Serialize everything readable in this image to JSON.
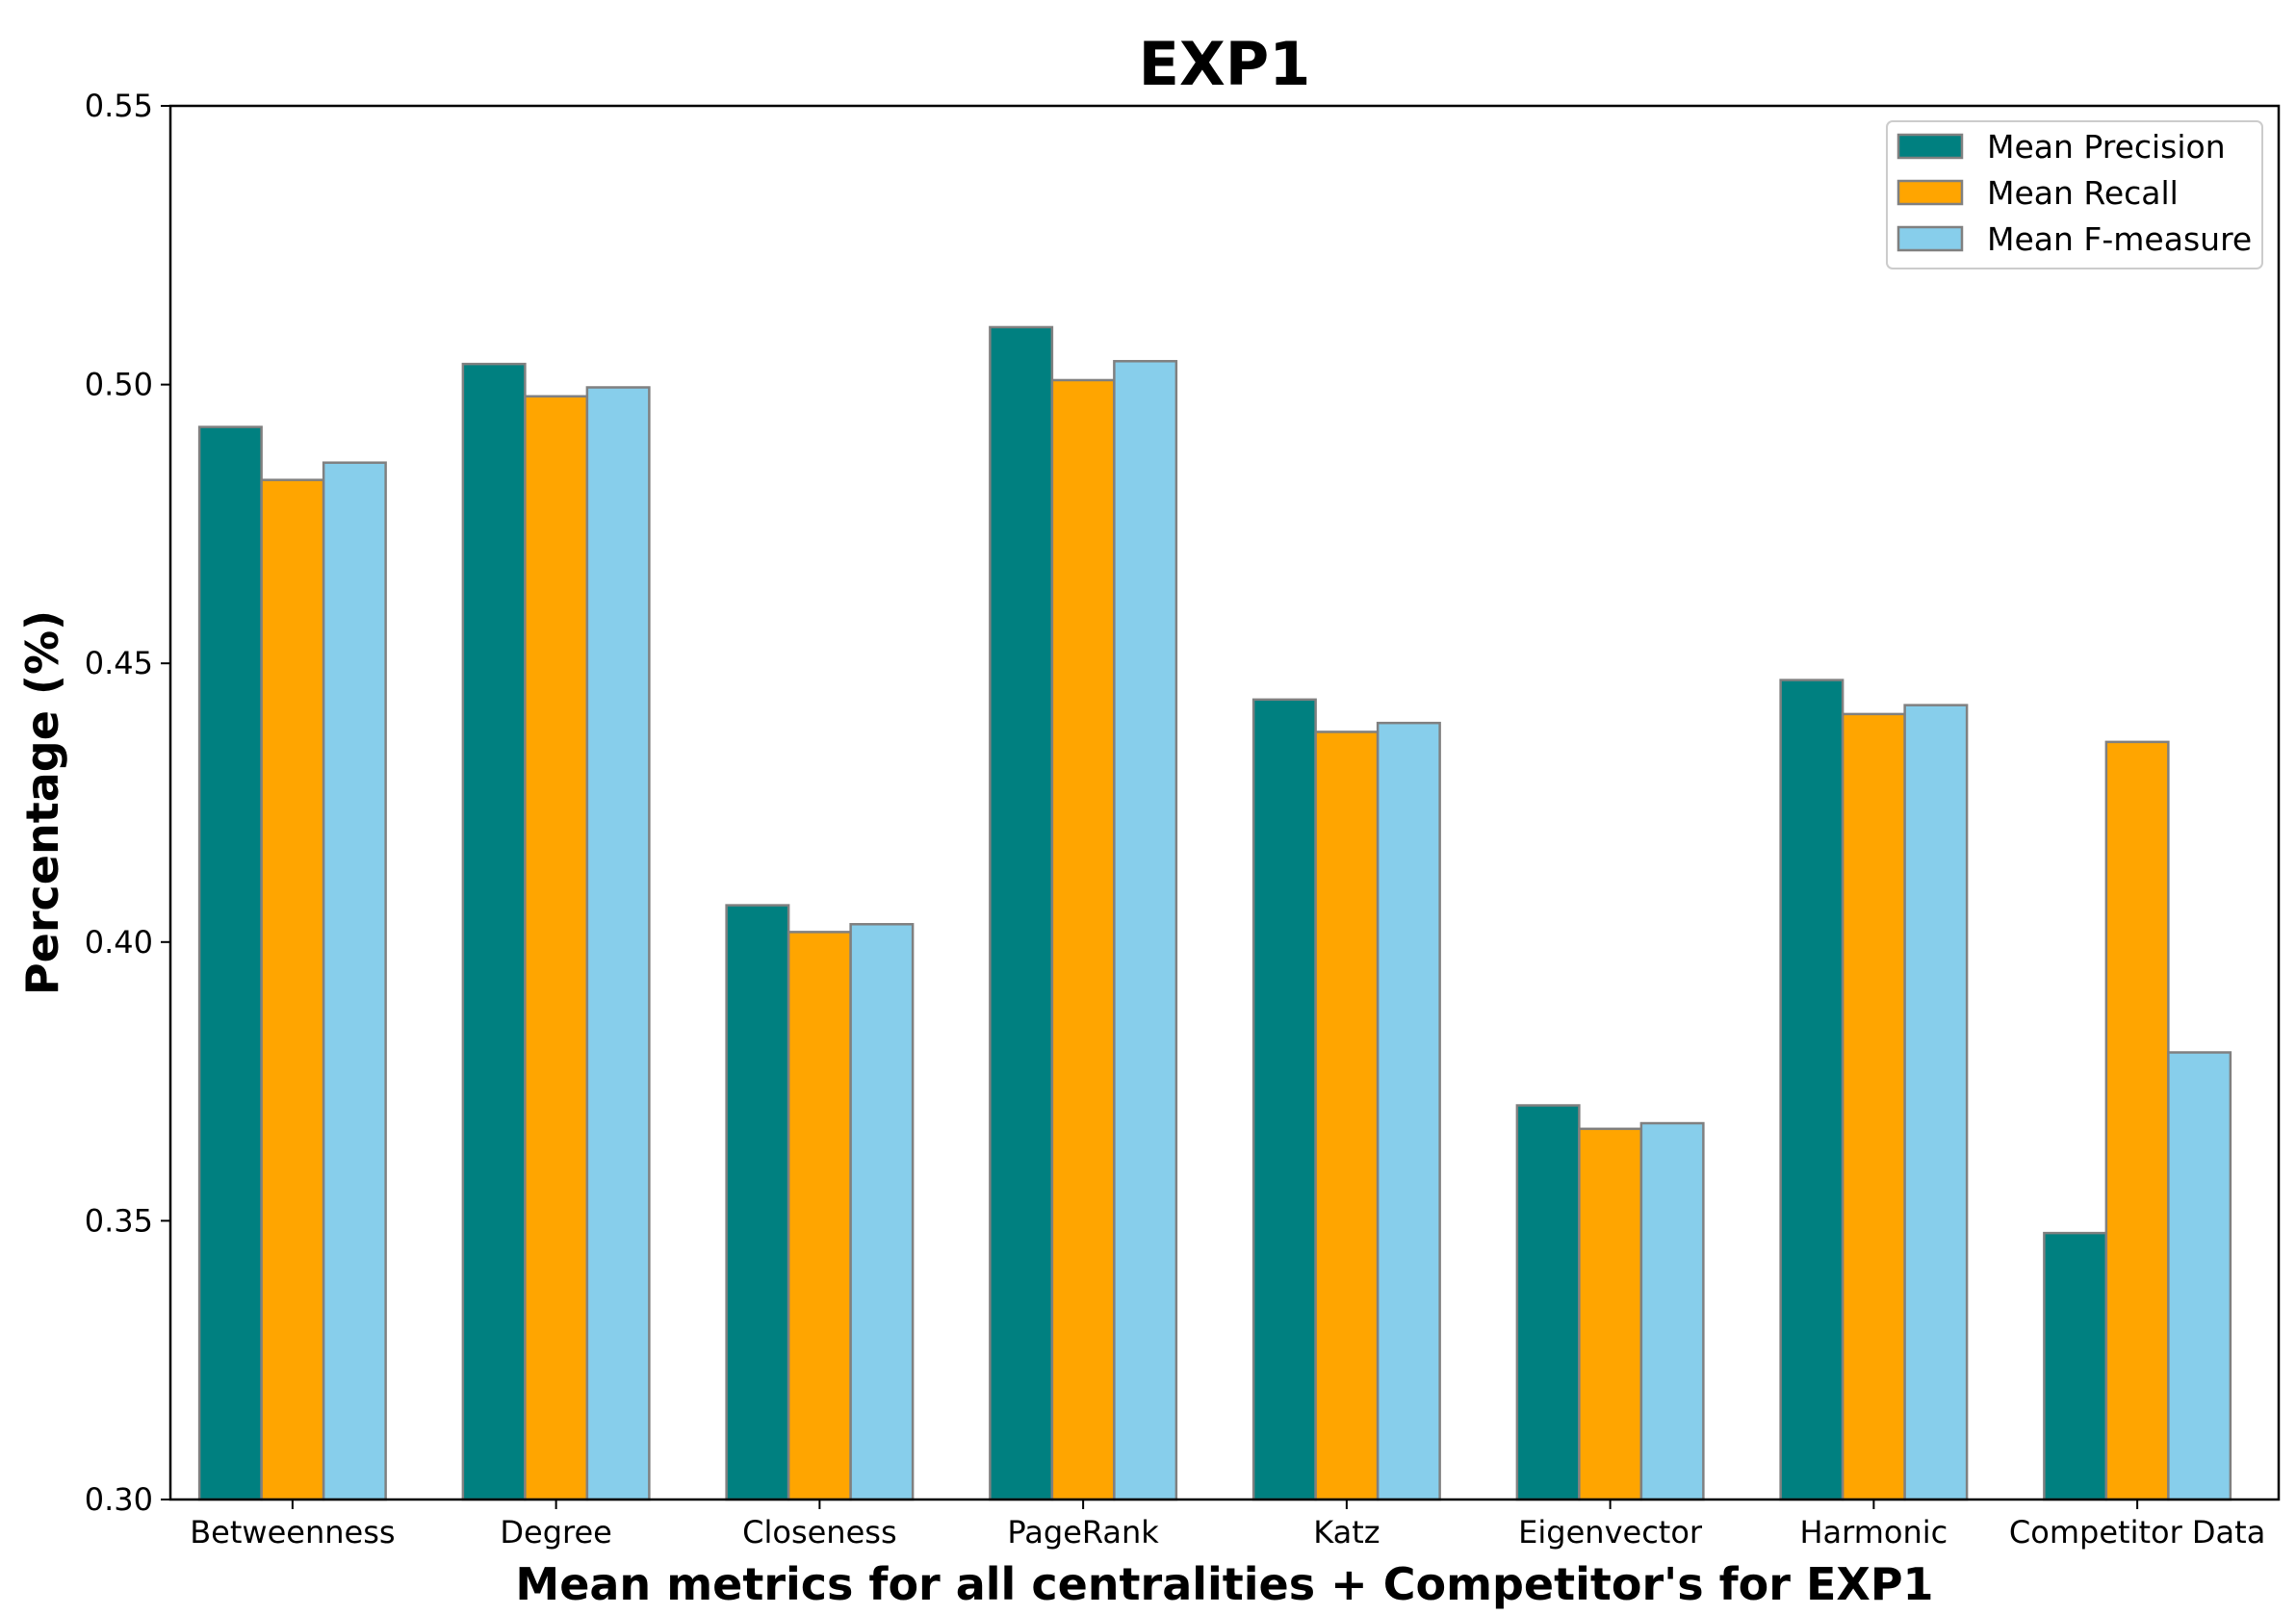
{
  "chart_data": {
    "type": "bar",
    "title": "EXP1",
    "xlabel": "Mean metrics for all centralities + Competitor's for EXP1",
    "ylabel": "Percentage (%)",
    "ylim": [
      0.3,
      0.55
    ],
    "yticks": [
      "0.30",
      "0.35",
      "0.40",
      "0.45",
      "0.50",
      "0.55"
    ],
    "grid": false,
    "legend_position": "top-right",
    "categories": [
      "Betweenness",
      "Degree",
      "Closeness",
      "PageRank",
      "Katz",
      "Eigenvector",
      "Harmonic",
      "Competitor Data"
    ],
    "series": [
      {
        "name": "Mean Precision",
        "color": "#008080",
        "values": [
          0.4924,
          0.5037,
          0.4066,
          0.5103,
          0.4435,
          0.3707,
          0.447,
          0.3478
        ]
      },
      {
        "name": "Mean Recall",
        "color": "#FFA500",
        "values": [
          0.4829,
          0.4979,
          0.4018,
          0.5008,
          0.4377,
          0.3665,
          0.4409,
          0.4359
        ]
      },
      {
        "name": "Mean F-measure",
        "color": "#87CEEB",
        "values": [
          0.486,
          0.4995,
          0.4032,
          0.5042,
          0.4393,
          0.3675,
          0.4425,
          0.3802
        ]
      }
    ]
  }
}
